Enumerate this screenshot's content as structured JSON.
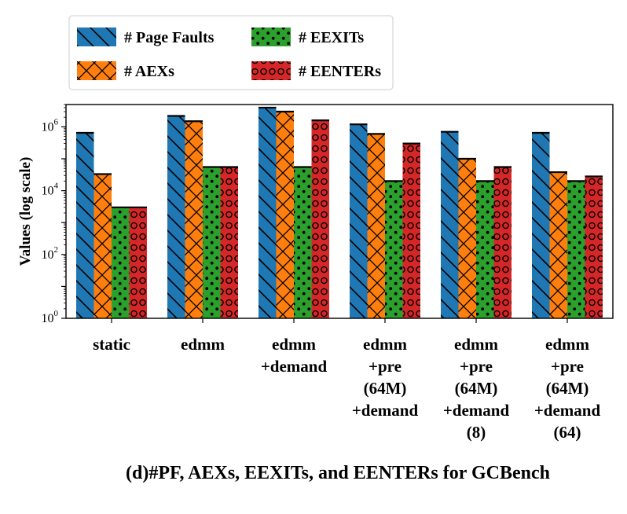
{
  "chart_data": {
    "type": "bar",
    "yscale": "log",
    "ylabel": "Values (log scale)",
    "ylim": [
      1,
      5000000
    ],
    "yticks": [
      {
        "base": "10",
        "exp": "0"
      },
      {
        "base": "10",
        "exp": "2"
      },
      {
        "base": "10",
        "exp": "4"
      },
      {
        "base": "10",
        "exp": "6"
      }
    ],
    "categories": [
      [
        "static"
      ],
      [
        "edmm"
      ],
      [
        "edmm",
        "+demand"
      ],
      [
        "edmm",
        "+pre",
        "(64M)",
        "+demand"
      ],
      [
        "edmm",
        "+pre",
        "(64M)",
        "+demand",
        "(8)"
      ],
      [
        "edmm",
        "+pre",
        "(64M)",
        "+demand",
        "(64)"
      ]
    ],
    "series": [
      {
        "name": "# Page Faults",
        "color": "#1f77b4",
        "hatch": "backslash",
        "values": [
          650000,
          2200000,
          4000000,
          1200000,
          700000,
          650000
        ]
      },
      {
        "name": "# AEXs",
        "color": "#ff7f0e",
        "hatch": "cross",
        "values": [
          33000,
          1500000,
          3000000,
          600000,
          100000,
          38000
        ]
      },
      {
        "name": "# EEXITs",
        "color": "#2ca02c",
        "hatch": "dots",
        "values": [
          3000,
          55000,
          55000,
          20000,
          20000,
          20000
        ]
      },
      {
        "name": "# EENTERs",
        "color": "#d62728",
        "hatch": "circles",
        "values": [
          3000,
          55000,
          1600000,
          300000,
          55000,
          28000
        ]
      }
    ],
    "legend_placement": "top-left, outside above plot",
    "grid": false,
    "caption": "(d)#PF, AEXs, EEXITs, and EENTERs for GCBench"
  }
}
